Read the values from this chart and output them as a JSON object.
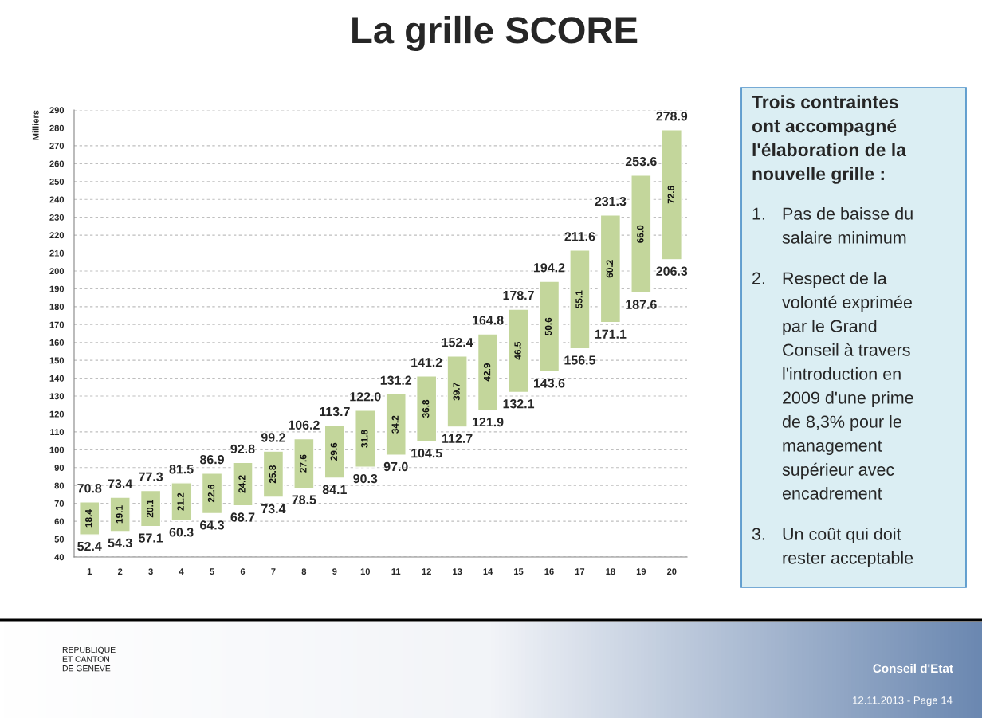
{
  "chart_data": [
    {
      "type": "bar",
      "title": "La grille SCORE",
      "ylabel": "Milliers",
      "categories": [
        "1",
        "2",
        "3",
        "4",
        "5",
        "6",
        "7",
        "8",
        "9",
        "10",
        "11",
        "12",
        "13",
        "14",
        "15",
        "16",
        "17",
        "18",
        "19",
        "20"
      ],
      "base": [
        52.4,
        54.3,
        57.1,
        60.3,
        64.3,
        68.7,
        73.4,
        78.5,
        84.1,
        90.3,
        97.0,
        104.5,
        112.7,
        121.9,
        132.1,
        143.6,
        156.5,
        171.1,
        187.6,
        206.3
      ],
      "values": [
        18.4,
        19.1,
        20.1,
        21.2,
        22.6,
        24.2,
        25.8,
        27.6,
        29.6,
        31.8,
        34.2,
        36.8,
        39.7,
        42.9,
        46.5,
        50.6,
        55.1,
        60.2,
        66.0,
        72.6
      ],
      "value_labels": [
        "18.4",
        "19.1",
        "20.1",
        "21.2",
        "22.6",
        "24.2",
        "25.8",
        "27.6",
        "29.6",
        "31.8",
        "34.2",
        "36.8",
        "39.7",
        "42.9",
        "46.5",
        "50.6",
        "55.1",
        "60.2",
        "66.0",
        "72.6"
      ],
      "color": "#c3d69b",
      "ylim": [
        40,
        290
      ],
      "yticks": [
        40,
        50,
        60,
        70,
        80,
        90,
        100,
        110,
        120,
        130,
        140,
        150,
        160,
        170,
        180,
        190,
        200,
        210,
        220,
        230,
        240,
        250,
        260,
        270,
        280,
        290
      ],
      "grid": "y",
      "annotations": [
        {
          "text": "52.4",
          "x": "1",
          "y": 52.4
        },
        {
          "text": "70.8",
          "x": "1",
          "y": 70.8
        },
        {
          "text": "54.3",
          "x": "2",
          "y": 54.3
        },
        {
          "text": "73.4",
          "x": "2",
          "y": 73.4
        },
        {
          "text": "57.1",
          "x": "3",
          "y": 57.1
        },
        {
          "text": "77.3",
          "x": "3",
          "y": 77.3
        },
        {
          "text": "60.3",
          "x": "4",
          "y": 60.3
        },
        {
          "text": "81.5",
          "x": "4",
          "y": 81.5
        },
        {
          "text": "64.3",
          "x": "5",
          "y": 64.3
        },
        {
          "text": "86.9",
          "x": "5",
          "y": 86.9
        },
        {
          "text": "68.7",
          "x": "6",
          "y": 68.7
        },
        {
          "text": "92.8",
          "x": "6",
          "y": 92.8
        },
        {
          "text": "73.4",
          "x": "7",
          "y": 73.4
        },
        {
          "text": "99.2",
          "x": "7",
          "y": 99.2
        },
        {
          "text": "78.5",
          "x": "8",
          "y": 78.5
        },
        {
          "text": "106.2",
          "x": "8",
          "y": 106.2
        },
        {
          "text": "84.1",
          "x": "9",
          "y": 84.1
        },
        {
          "text": "113.7",
          "x": "9",
          "y": 113.7
        },
        {
          "text": "90.3",
          "x": "10",
          "y": 90.3
        },
        {
          "text": "122.0",
          "x": "10",
          "y": 122.0
        },
        {
          "text": "97.0",
          "x": "11",
          "y": 97.0
        },
        {
          "text": "131.2",
          "x": "11",
          "y": 131.2
        },
        {
          "text": "104.5",
          "x": "12",
          "y": 104.5
        },
        {
          "text": "141.2",
          "x": "12",
          "y": 141.2
        },
        {
          "text": "112.7",
          "x": "13",
          "y": 112.7
        },
        {
          "text": "152.4",
          "x": "13",
          "y": 152.4
        },
        {
          "text": "121.9",
          "x": "14",
          "y": 121.9
        },
        {
          "text": "164.8",
          "x": "14",
          "y": 164.8
        },
        {
          "text": "132.1",
          "x": "15",
          "y": 132.1
        },
        {
          "text": "178.7",
          "x": "15",
          "y": 178.7
        },
        {
          "text": "143.6",
          "x": "16",
          "y": 143.6
        },
        {
          "text": "194.2",
          "x": "16",
          "y": 194.2
        },
        {
          "text": "156.5",
          "x": "17",
          "y": 156.5
        },
        {
          "text": "211.6",
          "x": "17",
          "y": 211.6
        },
        {
          "text": "171.1",
          "x": "18",
          "y": 171.1
        },
        {
          "text": "231.3",
          "x": "18",
          "y": 231.3
        },
        {
          "text": "187.6",
          "x": "19",
          "y": 187.6
        },
        {
          "text": "253.6",
          "x": "19",
          "y": 253.6
        },
        {
          "text": "206.3",
          "x": "20",
          "y": 206.3
        },
        {
          "text": "278.9",
          "x": "20",
          "y": 278.9
        },
        "REPUBLIQUE\nET CANTON\nDE GENEVE",
        "Conseil d'Etat",
        "12.11.2013 - Page 14"
      ]
    },
    {
      "type": "other",
      "title": "Trois contraintes\nont accompagné\nl'élaboration de la\nnouvelle grille :",
      "annotations": [
        "1. Pas de baisse du\nsalaire minimum",
        "2. Respect de la\nvolonté exprimée\npar le Grand\nConseil à travers\nl'introduction en\n2009 d'une prime\nde 8,3% pour le\nmanagement\nsupérieur avec\nencadrement",
        "3. Un coût qui doit\nrester acceptable"
      ]
    }
  ]
}
